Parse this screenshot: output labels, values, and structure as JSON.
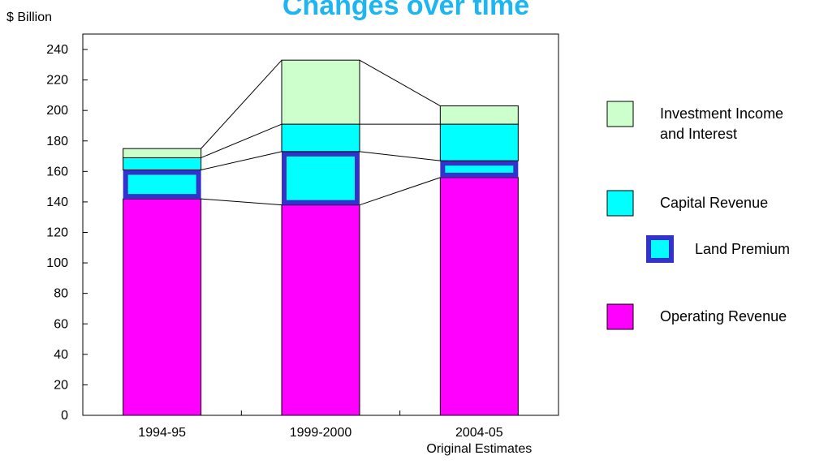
{
  "chart_data": {
    "type": "bar",
    "title": "Changes over time",
    "ylabel": "$ Billion",
    "ylim": [
      0,
      240
    ],
    "yticks": [
      0,
      20,
      40,
      60,
      80,
      100,
      120,
      140,
      160,
      180,
      200,
      220,
      240
    ],
    "categories": [
      "1994-95",
      "1999-2000",
      "2004-05"
    ],
    "category_sublabels": [
      "",
      "",
      "Original Estimates"
    ],
    "stacked": true,
    "grid": false,
    "legend_position": "right",
    "series": [
      {
        "name": "Operating Revenue",
        "values": [
          142,
          138,
          156
        ],
        "color": "#ff00ff"
      },
      {
        "name": "Land Premium",
        "values": [
          19,
          35,
          11
        ],
        "color": "#00ffff",
        "border": "#3333cc"
      },
      {
        "name": "Capital Revenue",
        "values": [
          8,
          18,
          24
        ],
        "color": "#00ffff"
      },
      {
        "name": "Investment Income and Interest",
        "values": [
          6,
          42,
          12
        ],
        "color": "#ccffcc"
      }
    ],
    "legend": [
      {
        "lines": [
          "Investment Income",
          "and Interest"
        ],
        "series_index": 3
      },
      {
        "lines": [
          "Capital Revenue"
        ],
        "series_index": 2
      },
      {
        "lines": [
          "Land Premium"
        ],
        "series_index": 1
      },
      {
        "lines": [
          "Operating Revenue"
        ],
        "series_index": 0
      }
    ]
  }
}
